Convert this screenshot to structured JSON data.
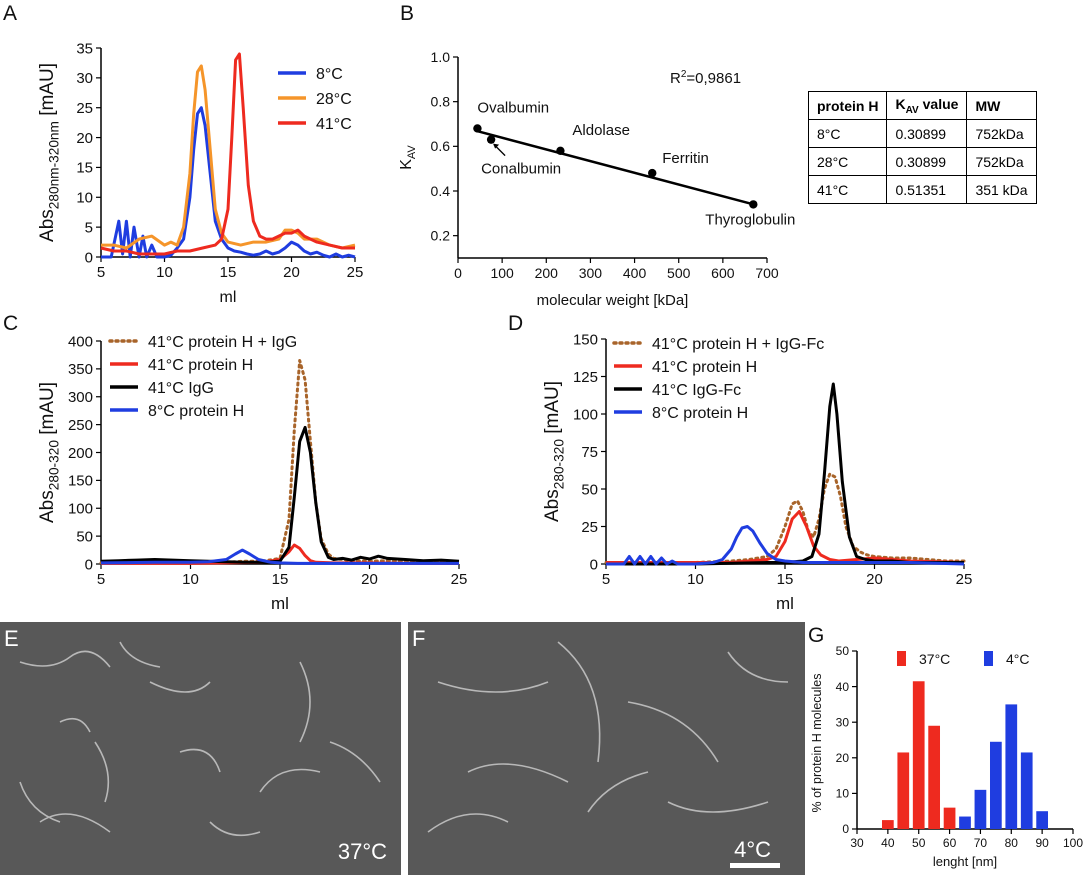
{
  "panel_labels": {
    "A": "A",
    "B": "B",
    "C": "C",
    "D": "D",
    "E": "E",
    "F": "F",
    "G": "G"
  },
  "kav_table": {
    "headers": [
      "protein H",
      "K",
      "AV",
      " value",
      "MW"
    ],
    "rows": [
      [
        "8°C",
        "0.30899",
        "752kDa"
      ],
      [
        "28°C",
        "0.30899",
        "752kDa"
      ],
      [
        "41°C",
        "0.51351",
        "351 kDa"
      ]
    ]
  },
  "micrographs": {
    "E": {
      "label": "37°C"
    },
    "F": {
      "label": "4°C"
    }
  },
  "colors": {
    "blue": "#1f3de0",
    "orange": "#f5952a",
    "red": "#ee2a1f",
    "black": "#000000",
    "brown": "#a8642a",
    "scale_white": "#ffffff"
  },
  "chart_data": [
    {
      "id": "A",
      "type": "line",
      "title": "",
      "xlabel": "ml",
      "ylabel_parts": [
        "Abs",
        "280nm-320nm",
        " [mAU]"
      ],
      "xlim": [
        5,
        25
      ],
      "ylim": [
        0,
        35
      ],
      "xticks": [
        5,
        10,
        15,
        20,
        25
      ],
      "yticks": [
        0,
        5,
        10,
        15,
        20,
        25,
        30,
        35
      ],
      "legend": "top-right",
      "series": [
        {
          "name": "8°C",
          "color": "blue",
          "x": [
            5,
            5.8,
            6.4,
            6.7,
            7.0,
            7.3,
            7.6,
            8.0,
            8.3,
            8.6,
            9.0,
            9.4,
            10,
            10.5,
            11,
            11.5,
            12,
            12.3,
            12.6,
            12.9,
            13.2,
            13.6,
            14.0,
            14.5,
            15,
            15.5,
            16,
            16.5,
            17,
            17.5,
            18,
            18.5,
            19,
            19.5,
            20,
            20.5,
            21,
            21.5,
            22,
            22.5,
            23,
            23.5,
            24,
            24.5,
            25
          ],
          "y": [
            0,
            0,
            6,
            0.5,
            6,
            0,
            5,
            0,
            3.5,
            0,
            2,
            0,
            0,
            0.3,
            1.5,
            3,
            10,
            18,
            24,
            25,
            22,
            14,
            6,
            3,
            1.5,
            1,
            0.8,
            0.5,
            0.3,
            0.5,
            1,
            0.5,
            0.8,
            1.5,
            2.5,
            2,
            1,
            0.5,
            0.8,
            0.3,
            0,
            0.5,
            0,
            0.3,
            0
          ]
        },
        {
          "name": "28°C",
          "color": "orange",
          "x": [
            5,
            6,
            7,
            8,
            9,
            10,
            10.5,
            11,
            11.5,
            12,
            12.3,
            12.6,
            12.9,
            13.2,
            13.6,
            14.0,
            14.5,
            15,
            16,
            17,
            18,
            19,
            19.5,
            20,
            20.5,
            21,
            22,
            23,
            24,
            25
          ],
          "y": [
            2,
            2,
            1.5,
            3,
            3.5,
            2,
            2.5,
            2,
            5,
            14,
            24,
            31,
            32,
            28,
            18,
            8,
            4,
            2.5,
            2,
            2.5,
            2.5,
            3,
            4.5,
            4.5,
            4,
            3,
            3,
            2,
            1.5,
            2
          ]
        },
        {
          "name": "41°C",
          "color": "red",
          "x": [
            5,
            6,
            7,
            8,
            9,
            10,
            11,
            12,
            13,
            14,
            14.5,
            15,
            15.3,
            15.6,
            15.9,
            16.2,
            16.6,
            17,
            17.5,
            18,
            18.5,
            19,
            19.5,
            20,
            20.5,
            21,
            22,
            23,
            24,
            25
          ],
          "y": [
            1.5,
            1,
            1,
            0.5,
            0.5,
            0.5,
            1,
            1,
            1.5,
            2,
            3,
            8,
            20,
            33,
            34,
            25,
            12,
            6,
            3.5,
            3,
            3,
            3.5,
            4,
            4,
            4.5,
            3.5,
            2.5,
            2,
            1.5,
            1.5
          ]
        }
      ]
    },
    {
      "id": "B",
      "type": "scatter",
      "title": "",
      "xlabel": "molecular weight [kDa]",
      "ylabel": "K",
      "ylabel_sub": "AV",
      "xlim": [
        0,
        700
      ],
      "ylim": [
        0.1,
        1.0
      ],
      "xticks": [
        0,
        100,
        200,
        300,
        400,
        500,
        600,
        700
      ],
      "yticks": [
        0.2,
        0.4,
        0.6,
        0.8,
        1.0
      ],
      "ytick_labels": [
        "0.2",
        "0.4",
        "0.6",
        "0.8",
        "1.0"
      ],
      "annotation_r2_prefix": "R",
      "annotation_r2_sup": "2",
      "annotation_r2_value": "=0,9861",
      "fit_line": {
        "x": [
          40,
          670
        ],
        "y": [
          0.67,
          0.34
        ]
      },
      "points": [
        {
          "name": "Ovalbumin",
          "x": 44,
          "y": 0.68
        },
        {
          "name": "Conalbumin",
          "x": 75,
          "y": 0.63
        },
        {
          "name": "Aldolase",
          "x": 232,
          "y": 0.58
        },
        {
          "name": "Ferritin",
          "x": 440,
          "y": 0.48
        },
        {
          "name": "Thyroglobulin",
          "x": 669,
          "y": 0.34
        }
      ]
    },
    {
      "id": "C",
      "type": "line",
      "title": "",
      "xlabel": "ml",
      "ylabel_parts": [
        "Abs",
        "280-320",
        " [mAU]"
      ],
      "xlim": [
        5,
        25
      ],
      "ylim": [
        0,
        400
      ],
      "xticks": [
        5,
        10,
        15,
        20,
        25
      ],
      "yticks": [
        0,
        50,
        100,
        150,
        200,
        250,
        300,
        350,
        400
      ],
      "legend": "top-left",
      "series": [
        {
          "name": "41°C protein H + IgG",
          "color": "brown",
          "dashed": true,
          "x": [
            5,
            8,
            10,
            12,
            13,
            14,
            15,
            15.5,
            15.8,
            16.1,
            16.4,
            16.7,
            17,
            17.3,
            17.7,
            18,
            19,
            20,
            21,
            22,
            23,
            24,
            25
          ],
          "y": [
            2,
            3,
            3,
            3,
            5,
            5,
            10,
            80,
            240,
            365,
            330,
            220,
            110,
            45,
            18,
            10,
            6,
            5,
            6,
            5,
            4,
            4,
            3
          ]
        },
        {
          "name": "41°C protein H",
          "color": "red",
          "x": [
            5,
            8,
            10,
            12,
            14,
            15,
            15.5,
            15.8,
            16.1,
            16.4,
            16.7,
            17,
            18,
            20,
            22,
            25
          ],
          "y": [
            1,
            1,
            1,
            2,
            3,
            8,
            22,
            34,
            28,
            15,
            6,
            3,
            2,
            2,
            1,
            1
          ]
        },
        {
          "name": "41°C IgG",
          "color": "black",
          "x": [
            5,
            6,
            7,
            8,
            9,
            10,
            11,
            12,
            13,
            14,
            15,
            15.5,
            15.8,
            16.1,
            16.4,
            16.7,
            17,
            17.3,
            17.7,
            18,
            18.5,
            19,
            19.5,
            20,
            20.5,
            21,
            22,
            23,
            24,
            25
          ],
          "y": [
            5,
            6,
            7,
            8,
            7,
            6,
            5,
            4,
            3,
            3,
            5,
            30,
            120,
            220,
            245,
            200,
            110,
            40,
            12,
            8,
            10,
            7,
            12,
            9,
            14,
            10,
            8,
            6,
            7,
            5
          ]
        },
        {
          "name": "8°C protein H",
          "color": "blue",
          "x": [
            5,
            8,
            10,
            11,
            12,
            12.5,
            12.9,
            13.3,
            13.8,
            14.5,
            15,
            16,
            18,
            20,
            22,
            25
          ],
          "y": [
            2,
            3,
            3,
            4,
            8,
            18,
            25,
            18,
            8,
            3,
            2,
            1,
            1,
            1,
            1,
            1
          ]
        }
      ]
    },
    {
      "id": "D",
      "type": "line",
      "title": "",
      "xlabel": "ml",
      "ylabel_parts": [
        "Abs",
        "280-320",
        " [mAU]"
      ],
      "xlim": [
        5,
        25
      ],
      "ylim": [
        0,
        150
      ],
      "xticks": [
        5,
        10,
        15,
        20,
        25
      ],
      "yticks": [
        0,
        25,
        50,
        75,
        100,
        125,
        150
      ],
      "legend": "top-left",
      "series": [
        {
          "name": "41°C  protein H + IgG-Fc",
          "color": "brown",
          "dashed": true,
          "x": [
            5,
            8,
            10,
            12,
            13,
            14,
            14.5,
            15,
            15.4,
            15.7,
            16,
            16.3,
            16.6,
            16.9,
            17.2,
            17.5,
            17.8,
            18.1,
            18.4,
            18.8,
            19.2,
            19.6,
            20,
            21,
            22,
            23,
            24,
            25
          ],
          "y": [
            1,
            1,
            1,
            2,
            3,
            5,
            10,
            25,
            40,
            42,
            35,
            22,
            18,
            30,
            50,
            60,
            58,
            45,
            25,
            12,
            8,
            6,
            5,
            4,
            4,
            3,
            2,
            2
          ]
        },
        {
          "name": "41°C protein H",
          "color": "red",
          "x": [
            5,
            8,
            10,
            12,
            13,
            14,
            14.5,
            15,
            15.4,
            15.8,
            16.2,
            16.6,
            17,
            17.5,
            18,
            19,
            20,
            22,
            25
          ],
          "y": [
            1,
            1,
            1,
            1,
            2,
            3,
            5,
            15,
            30,
            35,
            25,
            12,
            6,
            3,
            2,
            3,
            4,
            2,
            1
          ]
        },
        {
          "name": "41°C IgG-Fc",
          "color": "black",
          "x": [
            5,
            10,
            14,
            15,
            16,
            16.5,
            16.9,
            17.2,
            17.5,
            17.7,
            17.9,
            18.2,
            18.6,
            19,
            19.5,
            20,
            21,
            22,
            23,
            24,
            25
          ],
          "y": [
            0,
            0,
            1,
            1,
            2,
            5,
            20,
            60,
            105,
            120,
            100,
            55,
            18,
            5,
            3,
            2,
            2,
            1,
            1,
            1,
            1
          ]
        },
        {
          "name": "8°C protein H",
          "color": "blue",
          "x": [
            5,
            6,
            6.3,
            6.6,
            6.9,
            7.2,
            7.5,
            7.8,
            8.1,
            8.4,
            8.7,
            9,
            10,
            11,
            11.5,
            12,
            12.3,
            12.6,
            12.9,
            13.2,
            13.6,
            14,
            14.5,
            15,
            16,
            18,
            20,
            22,
            25
          ],
          "y": [
            0,
            0,
            5,
            0,
            5,
            0,
            5,
            0,
            4,
            0,
            2,
            0,
            0,
            1,
            3,
            10,
            18,
            24,
            25,
            22,
            14,
            7,
            3,
            2,
            1,
            1,
            1,
            1,
            0
          ]
        }
      ]
    },
    {
      "id": "G",
      "type": "bar",
      "title": "",
      "xlabel": "lenght [nm]",
      "ylabel": "% of protein H molecules",
      "xlim": [
        30,
        100
      ],
      "ylim": [
        0,
        50
      ],
      "xticks": [
        30,
        40,
        50,
        60,
        70,
        80,
        90,
        100
      ],
      "yticks": [
        0,
        10,
        20,
        30,
        40,
        50
      ],
      "legend": "top",
      "series": [
        {
          "name": "37°C",
          "color": "red",
          "x": [
            40,
            45,
            50,
            55,
            60
          ],
          "values": [
            2.5,
            21.5,
            41.5,
            29,
            6
          ]
        },
        {
          "name": "4°C",
          "color": "blue",
          "x": [
            65,
            70,
            75,
            80,
            85,
            90
          ],
          "values": [
            3.5,
            11,
            24.5,
            35,
            21.5,
            5
          ]
        }
      ]
    }
  ]
}
